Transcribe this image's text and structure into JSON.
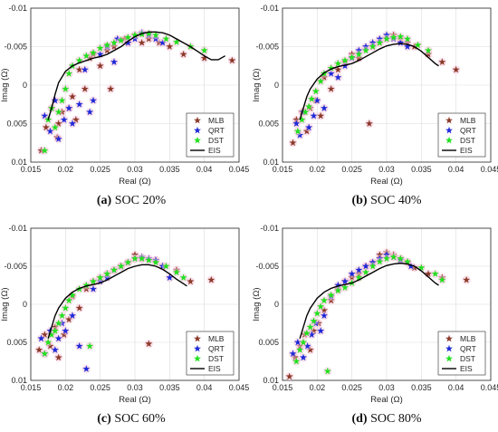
{
  "chart_data": [
    {
      "type": "scatter",
      "caption_letter": "(a)",
      "caption_text": " SOC 20%",
      "xlabel": "Real (Ω)",
      "ylabel": "Imag (Ω)",
      "xlim": [
        0.015,
        0.045
      ],
      "ylim": [
        0.01,
        -0.01
      ],
      "xticks": [
        "0.015",
        "0.02",
        "0.025",
        "0.03",
        "0.035",
        "0.04",
        "0.045"
      ],
      "yticks": [
        "-0.01",
        "-0.005",
        "0",
        "0.005",
        "0.01"
      ],
      "grid": true,
      "legend_position": "bottom-right",
      "series": [
        {
          "name": "MLB",
          "marker": "star",
          "color": "#8b3a2a",
          "x": [
            0.0165,
            0.0172,
            0.018,
            0.0188,
            0.019,
            0.0195,
            0.0205,
            0.021,
            0.0215,
            0.022,
            0.0228,
            0.0235,
            0.024,
            0.025,
            0.026,
            0.0265,
            0.027,
            0.0285,
            0.029,
            0.03,
            0.031,
            0.032,
            0.0335,
            0.035,
            0.037,
            0.04,
            0.044
          ],
          "y": [
            0.0085,
            0.0055,
            0.003,
            0.0068,
            0.005,
            0.0035,
            0.003,
            0.0015,
            0.0045,
            -0.002,
            0.0005,
            -0.0035,
            -0.004,
            -0.0025,
            -0.0045,
            0.0005,
            -0.005,
            -0.006,
            -0.0055,
            -0.0065,
            -0.0055,
            -0.006,
            -0.0055,
            -0.005,
            -0.004,
            -0.0035,
            -0.0032
          ]
        },
        {
          "name": "QRT",
          "marker": "star",
          "color": "#1f2ad8",
          "x": [
            0.017,
            0.0178,
            0.0185,
            0.019,
            0.0198,
            0.0205,
            0.021,
            0.022,
            0.0228,
            0.0235,
            0.024,
            0.025,
            0.026,
            0.027,
            0.0275,
            0.029,
            0.03,
            0.031,
            0.032,
            0.033,
            0.034
          ],
          "y": [
            0.004,
            0.006,
            0.002,
            0.007,
            0.0045,
            0.003,
            0.005,
            0.0025,
            -0.002,
            0.0035,
            0.002,
            -0.004,
            -0.005,
            -0.003,
            -0.006,
            -0.0055,
            -0.006,
            -0.0068,
            -0.0065,
            -0.006,
            -0.0055
          ]
        },
        {
          "name": "DST",
          "marker": "star",
          "color": "#22e01e",
          "x": [
            0.017,
            0.0175,
            0.018,
            0.0185,
            0.019,
            0.0195,
            0.02,
            0.0205,
            0.021,
            0.022,
            0.023,
            0.024,
            0.025,
            0.026,
            0.027,
            0.028,
            0.029,
            0.03,
            0.031,
            0.032,
            0.033,
            0.0345,
            0.036,
            0.038,
            0.04
          ],
          "y": [
            0.0085,
            0.0045,
            0.003,
            0.0055,
            0.0035,
            0.002,
            0.0005,
            -0.0015,
            -0.0025,
            -0.0032,
            -0.0038,
            -0.0042,
            -0.0048,
            -0.0052,
            -0.0055,
            -0.0058,
            -0.0062,
            -0.0065,
            -0.0066,
            -0.0067,
            -0.0065,
            -0.006,
            -0.0056,
            -0.005,
            -0.0045
          ]
        },
        {
          "name": "EIS",
          "marker": "line",
          "color": "#000000",
          "x": [
            0.0175,
            0.018,
            0.0185,
            0.019,
            0.02,
            0.021,
            0.022,
            0.023,
            0.024,
            0.025,
            0.026,
            0.027,
            0.028,
            0.029,
            0.03,
            0.031,
            0.032,
            0.033,
            0.034,
            0.035,
            0.036,
            0.037,
            0.038,
            0.039,
            0.04,
            0.041,
            0.042,
            0.043
          ],
          "y": [
            0.0045,
            0.003,
            0.0012,
            -0.0003,
            -0.0018,
            -0.0025,
            -0.0029,
            -0.0032,
            -0.0035,
            -0.0037,
            -0.004,
            -0.0045,
            -0.005,
            -0.0057,
            -0.0063,
            -0.0067,
            -0.0069,
            -0.0069,
            -0.0068,
            -0.0065,
            -0.006,
            -0.0055,
            -0.005,
            -0.0044,
            -0.0038,
            -0.0033,
            -0.0033,
            -0.0038
          ]
        }
      ]
    },
    {
      "type": "scatter",
      "caption_letter": "(b)",
      "caption_text": " SOC 40%",
      "xlabel": "Real (Ω)",
      "ylabel": "Imag (Ω)",
      "xlim": [
        0.015,
        0.045
      ],
      "ylim": [
        0.01,
        -0.01
      ],
      "xticks": [
        "0.015",
        "0.02",
        "0.025",
        "0.03",
        "0.035",
        "0.04",
        "0.045"
      ],
      "yticks": [
        "-0.01",
        "-0.005",
        "0",
        "0.005",
        "0.01"
      ],
      "grid": true,
      "legend_position": "bottom-right",
      "series": [
        {
          "name": "MLB",
          "marker": "star",
          "color": "#8b3a2a",
          "x": [
            0.0165,
            0.017,
            0.0178,
            0.0185,
            0.019,
            0.0198,
            0.0205,
            0.021,
            0.022,
            0.023,
            0.024,
            0.025,
            0.026,
            0.0275,
            0.028,
            0.029,
            0.03,
            0.031,
            0.032,
            0.033,
            0.034,
            0.036,
            0.038,
            0.04
          ],
          "y": [
            0.0075,
            0.0045,
            0.0035,
            0.006,
            0.003,
            0.002,
            0.004,
            -0.001,
            0.0005,
            -0.002,
            -0.003,
            -0.004,
            -0.0035,
            0.005,
            -0.005,
            -0.0055,
            -0.006,
            -0.0065,
            -0.006,
            -0.0055,
            -0.005,
            -0.004,
            -0.003,
            -0.002
          ]
        },
        {
          "name": "QRT",
          "marker": "star",
          "color": "#1f2ad8",
          "x": [
            0.017,
            0.0175,
            0.018,
            0.0188,
            0.0195,
            0.02,
            0.021,
            0.022,
            0.023,
            0.024,
            0.025,
            0.026,
            0.027,
            0.028,
            0.029,
            0.03,
            0.031,
            0.032,
            0.033
          ],
          "y": [
            0.005,
            0.0065,
            0.0035,
            0.0055,
            0.004,
            0.002,
            0.003,
            -0.0015,
            -0.001,
            -0.0025,
            -0.0035,
            -0.0045,
            -0.005,
            -0.0055,
            -0.006,
            -0.0065,
            -0.006,
            -0.0055,
            -0.005
          ]
        },
        {
          "name": "DST",
          "marker": "star",
          "color": "#22e01e",
          "x": [
            0.0172,
            0.0178,
            0.0183,
            0.0188,
            0.0192,
            0.0198,
            0.0205,
            0.021,
            0.022,
            0.023,
            0.024,
            0.025,
            0.026,
            0.027,
            0.028,
            0.029,
            0.03,
            0.031,
            0.032,
            0.033,
            0.0345,
            0.036
          ],
          "y": [
            0.006,
            0.0045,
            0.0035,
            0.0028,
            0.0018,
            0.0008,
            -0.0005,
            -0.0015,
            -0.0022,
            -0.0028,
            -0.0032,
            -0.0036,
            -0.004,
            -0.0045,
            -0.005,
            -0.0055,
            -0.006,
            -0.0062,
            -0.0063,
            -0.006,
            -0.0052,
            -0.0045
          ]
        },
        {
          "name": "EIS",
          "marker": "line",
          "color": "#000000",
          "x": [
            0.0175,
            0.018,
            0.0185,
            0.019,
            0.02,
            0.021,
            0.022,
            0.023,
            0.024,
            0.025,
            0.026,
            0.027,
            0.028,
            0.029,
            0.03,
            0.031,
            0.032,
            0.033,
            0.034,
            0.035,
            0.036,
            0.037,
            0.0375
          ],
          "y": [
            0.0045,
            0.003,
            0.0015,
            0.0005,
            -0.0008,
            -0.0016,
            -0.0021,
            -0.0024,
            -0.0026,
            -0.0028,
            -0.0032,
            -0.0037,
            -0.0042,
            -0.0047,
            -0.0051,
            -0.0053,
            -0.0054,
            -0.0053,
            -0.005,
            -0.0044,
            -0.0036,
            -0.0028,
            -0.0025
          ]
        }
      ]
    },
    {
      "type": "scatter",
      "caption_letter": "(c)",
      "caption_text": " SOC 60%",
      "xlabel": "Real (Ω)",
      "ylabel": "Imag (Ω)",
      "xlim": [
        0.015,
        0.045
      ],
      "ylim": [
        0.01,
        -0.01
      ],
      "xticks": [
        "0.015",
        "0.02",
        "0.025",
        "0.03",
        "0.035",
        "0.04",
        "0.045"
      ],
      "yticks": [
        "-0.01",
        "-0.005",
        "0",
        "0.005",
        "0.01"
      ],
      "grid": true,
      "legend_position": "bottom-right",
      "series": [
        {
          "name": "MLB",
          "marker": "star",
          "color": "#8b3a2a",
          "x": [
            0.0162,
            0.017,
            0.0178,
            0.0185,
            0.019,
            0.0198,
            0.0205,
            0.021,
            0.022,
            0.023,
            0.024,
            0.025,
            0.026,
            0.027,
            0.028,
            0.029,
            0.03,
            0.031,
            0.032,
            0.033,
            0.034,
            0.036,
            0.038,
            0.041
          ],
          "y": [
            0.006,
            0.004,
            0.0055,
            0.003,
            0.007,
            0.004,
            0.002,
            -0.001,
            0.0005,
            -0.002,
            -0.003,
            -0.0035,
            -0.004,
            -0.0045,
            -0.005,
            -0.0055,
            -0.0065,
            -0.006,
            0.0052,
            -0.0058,
            -0.005,
            -0.0045,
            -0.003,
            -0.0032
          ]
        },
        {
          "name": "QRT",
          "marker": "star",
          "color": "#1f2ad8",
          "x": [
            0.0165,
            0.017,
            0.0178,
            0.0185,
            0.019,
            0.0195,
            0.02,
            0.021,
            0.022,
            0.023,
            0.024,
            0.025,
            0.026,
            0.027,
            0.028,
            0.029,
            0.03,
            0.031,
            0.032,
            0.033,
            0.034,
            0.035
          ],
          "y": [
            0.0045,
            0.0065,
            0.0035,
            0.006,
            0.0045,
            0.0025,
            0.0035,
            0.0015,
            0.0055,
            0.0085,
            -0.002,
            -0.003,
            -0.0035,
            -0.0045,
            -0.005,
            -0.0055,
            -0.006,
            -0.0062,
            -0.006,
            -0.0058,
            -0.005,
            -0.0035
          ]
        },
        {
          "name": "DST",
          "marker": "star",
          "color": "#22e01e",
          "x": [
            0.017,
            0.0175,
            0.018,
            0.0185,
            0.019,
            0.0195,
            0.02,
            0.0205,
            0.021,
            0.022,
            0.023,
            0.0235,
            0.024,
            0.025,
            0.026,
            0.027,
            0.028,
            0.029,
            0.03,
            0.031,
            0.032,
            0.033,
            0.0345,
            0.036,
            0.037
          ],
          "y": [
            0.0065,
            0.005,
            0.004,
            0.0035,
            0.0025,
            0.0015,
            0.0005,
            -0.0005,
            -0.0012,
            -0.002,
            -0.0025,
            0.0055,
            -0.003,
            -0.0035,
            -0.004,
            -0.0045,
            -0.005,
            -0.0055,
            -0.006,
            -0.006,
            -0.0058,
            -0.0055,
            -0.005,
            -0.0042,
            -0.0035
          ]
        },
        {
          "name": "EIS",
          "marker": "line",
          "color": "#000000",
          "x": [
            0.0175,
            0.018,
            0.0185,
            0.019,
            0.02,
            0.021,
            0.022,
            0.023,
            0.024,
            0.025,
            0.026,
            0.027,
            0.028,
            0.029,
            0.03,
            0.031,
            0.032,
            0.033,
            0.034,
            0.035,
            0.036,
            0.037,
            0.0375
          ],
          "y": [
            0.0045,
            0.003,
            0.0015,
            0.0005,
            -0.0008,
            -0.0016,
            -0.0021,
            -0.0024,
            -0.0026,
            -0.0028,
            -0.0032,
            -0.0037,
            -0.0042,
            -0.0047,
            -0.005,
            -0.0052,
            -0.0052,
            -0.005,
            -0.0046,
            -0.004,
            -0.0033,
            -0.0027,
            -0.0024
          ]
        }
      ]
    },
    {
      "type": "scatter",
      "caption_letter": "(d)",
      "caption_text": " SOC 80%",
      "xlabel": "Real (Ω)",
      "ylabel": "Imag (Ω)",
      "xlim": [
        0.015,
        0.045
      ],
      "ylim": [
        0.01,
        -0.01
      ],
      "xticks": [
        "0.015",
        "0.02",
        "0.025",
        "0.03",
        "0.035",
        "0.04",
        "0.045"
      ],
      "yticks": [
        "-0.01",
        "-0.005",
        "0",
        "0.005",
        "0.01"
      ],
      "grid": true,
      "legend_position": "bottom-right",
      "series": [
        {
          "name": "MLB",
          "marker": "star",
          "color": "#8b3a2a",
          "x": [
            0.016,
            0.0168,
            0.0175,
            0.0182,
            0.019,
            0.0195,
            0.0202,
            0.021,
            0.022,
            0.023,
            0.024,
            0.025,
            0.026,
            0.027,
            0.028,
            0.029,
            0.03,
            0.031,
            0.032,
            0.033,
            0.034,
            0.036,
            0.038,
            0.0415
          ],
          "y": [
            0.0095,
            0.007,
            0.0055,
            0.004,
            0.006,
            0.0035,
            0.0025,
            0.0008,
            -0.0005,
            -0.002,
            -0.003,
            -0.0035,
            -0.004,
            -0.005,
            -0.0055,
            -0.0065,
            -0.0068,
            -0.0065,
            -0.006,
            -0.0055,
            -0.0048,
            -0.004,
            -0.0035,
            -0.0032
          ]
        },
        {
          "name": "QRT",
          "marker": "star",
          "color": "#1f2ad8",
          "x": [
            0.0165,
            0.0172,
            0.018,
            0.0186,
            0.0192,
            0.0198,
            0.0205,
            0.021,
            0.022,
            0.023,
            0.024,
            0.025,
            0.026,
            0.027,
            0.028,
            0.029,
            0.03,
            0.031,
            0.032,
            0.0335
          ],
          "y": [
            0.0065,
            0.005,
            0.007,
            0.0055,
            0.004,
            0.0025,
            0.0035,
            0.0015,
            -0.001,
            -0.0025,
            -0.003,
            -0.004,
            -0.0045,
            -0.005,
            -0.0055,
            -0.006,
            -0.0065,
            -0.0062,
            -0.0058,
            -0.005
          ]
        },
        {
          "name": "DST",
          "marker": "star",
          "color": "#22e01e",
          "x": [
            0.017,
            0.0175,
            0.018,
            0.0185,
            0.019,
            0.0195,
            0.02,
            0.0205,
            0.021,
            0.0215,
            0.022,
            0.023,
            0.024,
            0.025,
            0.026,
            0.027,
            0.028,
            0.029,
            0.03,
            0.031,
            0.032,
            0.033,
            0.035,
            0.037,
            0.038
          ],
          "y": [
            0.0075,
            0.006,
            0.005,
            0.0038,
            0.003,
            0.0022,
            0.0012,
            0.0003,
            -0.0005,
            0.0088,
            -0.0012,
            -0.0018,
            -0.0022,
            -0.0028,
            -0.0035,
            -0.0042,
            -0.005,
            -0.0056,
            -0.006,
            -0.0062,
            -0.006,
            -0.0056,
            -0.0048,
            -0.004,
            -0.0032
          ]
        },
        {
          "name": "EIS",
          "marker": "line",
          "color": "#000000",
          "x": [
            0.0175,
            0.018,
            0.0185,
            0.019,
            0.02,
            0.021,
            0.022,
            0.023,
            0.024,
            0.025,
            0.026,
            0.027,
            0.028,
            0.029,
            0.03,
            0.031,
            0.032,
            0.033,
            0.034,
            0.035,
            0.036,
            0.037,
            0.0375
          ],
          "y": [
            0.0045,
            0.003,
            0.0015,
            0.0005,
            -0.0008,
            -0.0016,
            -0.0021,
            -0.0024,
            -0.0026,
            -0.0028,
            -0.0032,
            -0.0037,
            -0.0042,
            -0.0047,
            -0.0051,
            -0.0053,
            -0.0054,
            -0.0053,
            -0.005,
            -0.0044,
            -0.0036,
            -0.0028,
            -0.0025
          ]
        }
      ]
    }
  ]
}
